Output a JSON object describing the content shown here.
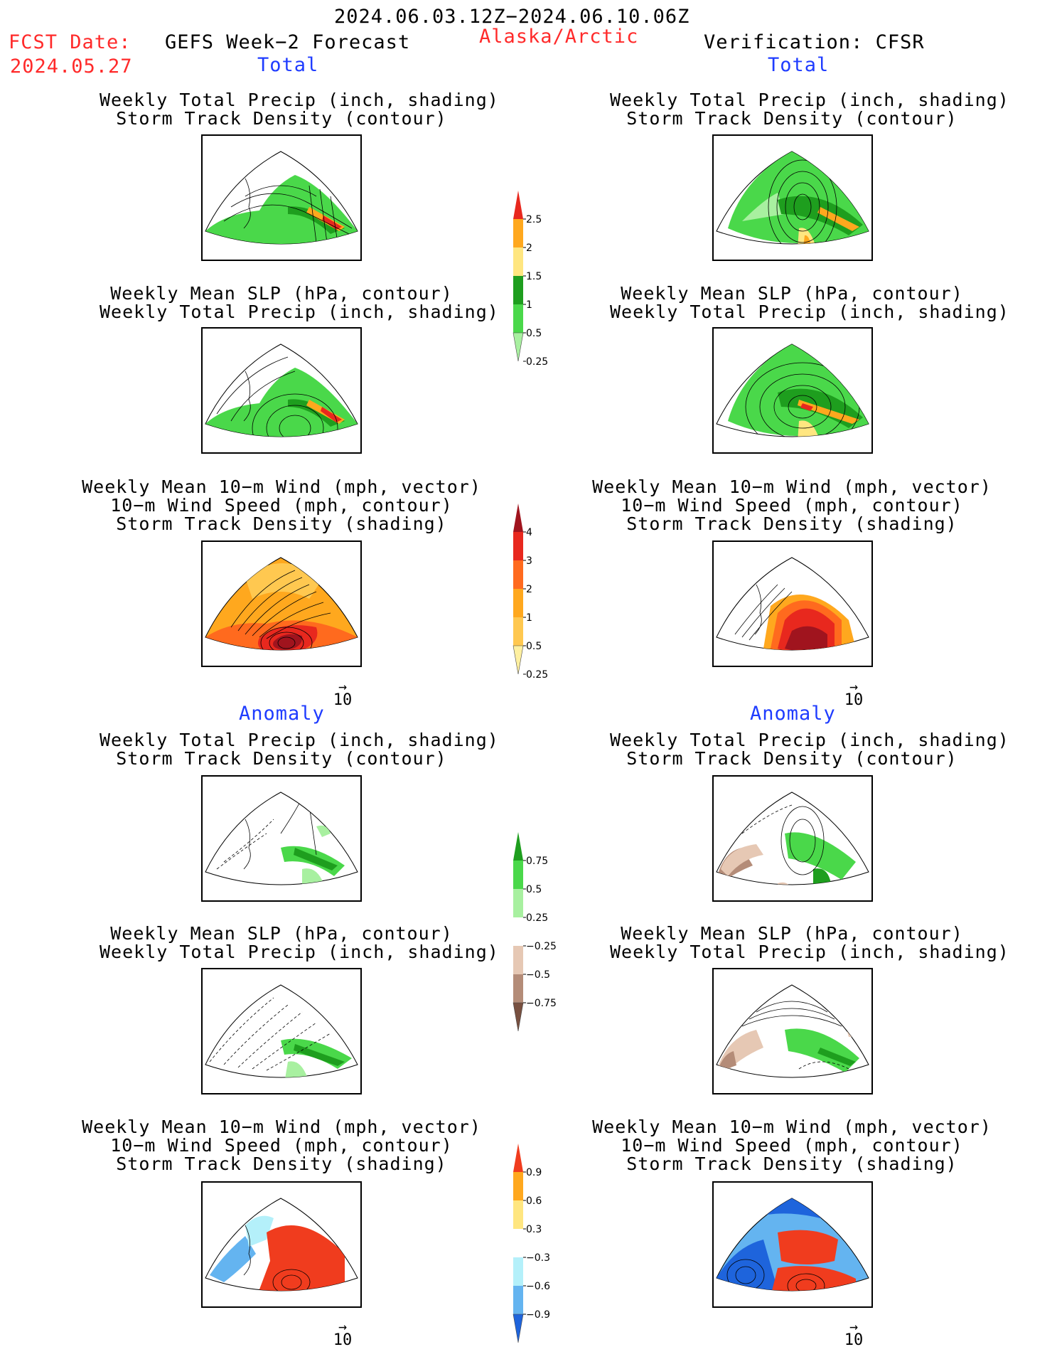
{
  "header": {
    "period": "2024.06.03.12Z−2024.06.10.06Z",
    "fcst_label": "FCST Date:",
    "fcst_date": "2024.05.27",
    "product": "GEFS Week−2 Forecast",
    "region": "Alaska/Arctic",
    "verification": "Verification: CFSR"
  },
  "section_labels": {
    "total": "Total",
    "anomaly": "Anomaly"
  },
  "panel_titles": {
    "precip_storm": [
      "Weekly Total Precip (inch, shading)",
      "Storm Track Density (contour)"
    ],
    "slp_precip": [
      "Weekly Mean SLP (hPa, contour)",
      "Weekly Total Precip (inch, shading)"
    ],
    "wind_storm": [
      "Weekly Mean 10−m Wind (mph, vector)",
      "10−m Wind Speed (mph, contour)",
      "Storm Track Density (shading)"
    ]
  },
  "vector_ref": {
    "arrow": "→",
    "value": "10"
  },
  "colorbars": {
    "total_precip": {
      "labels": [
        "2.5",
        "2",
        "1.5",
        "1",
        "0.5",
        "0.25"
      ],
      "colors": [
        "#e8281e",
        "#ffa81e",
        "#ffe680",
        "#1e9e1e",
        "#4ad84a",
        "#a8f0a0"
      ]
    },
    "total_storm": {
      "labels": [
        "4",
        "3",
        "2",
        "1",
        "0.5",
        "0.25"
      ],
      "colors": [
        "#a0141e",
        "#e8281e",
        "#ff6a1e",
        "#ffa81e",
        "#ffc850",
        "#fff0a0"
      ]
    },
    "anom_precip": {
      "labels": [
        "0.75",
        "0.5",
        "0.25",
        "−0.25",
        "−0.5",
        "−0.75"
      ],
      "colors": [
        "#1e9e1e",
        "#4ad84a",
        "#a8f0a0",
        "#ffffff",
        "#e6c8b4",
        "#b48c78",
        "#785040"
      ]
    },
    "anom_storm": {
      "labels": [
        "0.9",
        "0.6",
        "0.3",
        "−0.3",
        "−0.6",
        "−0.9"
      ],
      "colors": [
        "#f03c1e",
        "#ffa81e",
        "#ffe680",
        "#ffffff",
        "#b4f0fa",
        "#64b4f0",
        "#1e64dc"
      ]
    }
  },
  "colors": {
    "title_red": "#ff2a2a",
    "label_blue": "#1f3cff"
  }
}
